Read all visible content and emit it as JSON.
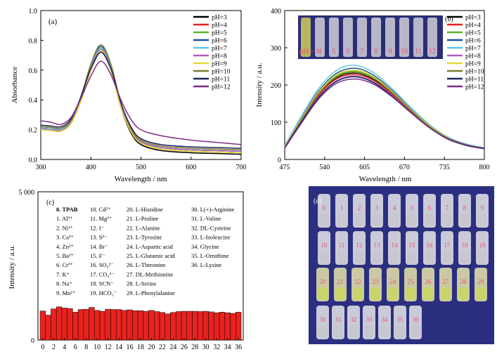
{
  "panel_a": {
    "tag": "(a)",
    "xlabel": "Wavelength / nm",
    "ylabel": "Absorbance",
    "xticks": [
      "300",
      "400",
      "500",
      "600",
      "700"
    ],
    "yticks": [
      "0.0",
      "0.2",
      "0.4",
      "0.6",
      "0.8",
      "1.0"
    ],
    "legend": [
      "pH=3",
      "pH=4",
      "pH=5",
      "pH=6",
      "pH=7",
      "pH=8",
      "pH=9",
      "pH=10",
      "pH=11",
      "pH=12"
    ]
  },
  "panel_b": {
    "tag": "(b)",
    "xlabel": "Wavelength / nm",
    "ylabel": "Intensity / a.u.",
    "xticks": [
      "475",
      "540",
      "605",
      "670",
      "735",
      "800"
    ],
    "yticks": [
      "0",
      "100",
      "200",
      "300",
      "400"
    ],
    "legend": [
      "pH=3",
      "pH=4",
      "pH=5",
      "pH=6",
      "pH=7",
      "pH=8",
      "pH=9",
      "pH=10",
      "pH=11",
      "pH=12"
    ],
    "inset_label": "pH= 3",
    "inset_numbers": [
      "4",
      "5",
      "6",
      "7",
      "8",
      "9",
      "10",
      "11",
      "12"
    ]
  },
  "panel_c": {
    "tag": "(c)",
    "ylabel": "Intensity / a.u.",
    "yticks": [
      "0",
      "5 000"
    ],
    "xticks": [
      "0",
      "2",
      "4",
      "6",
      "8",
      "10",
      "12",
      "14",
      "16",
      "18",
      "20",
      "22",
      "24",
      "26",
      "28",
      "30",
      "32",
      "34",
      "36"
    ],
    "legend_col1": [
      "0. TPAB",
      "1. Al³⁺",
      "2. Ni²⁺",
      "3. Ca²⁺",
      "4. Zn²⁺",
      "5. Ba²⁺",
      "6. Cr³⁺",
      "7. K⁺",
      "8. Na⁺",
      "9. Mn²⁺"
    ],
    "legend_col2": [
      "10. Cd²⁺",
      "11. Mg²⁺",
      "12. I⁻",
      "13. S²⁻",
      "14. Br⁻",
      "15. F⁻",
      "16. SO₄²⁻",
      "17. CO₃²⁻",
      "18. SCN⁻",
      "19. HCO₃⁻"
    ],
    "legend_col3": [
      "20. L-Histidine",
      "21. L-Proline",
      "22. L-Alanine",
      "23. L-Tyrosine",
      "24. L-Aspartic acid",
      "25. L-Glutamic acid",
      "26. L-Threonine",
      "27. DL-Methionine",
      "28. L-Serine",
      "29. L-Phenylalanine"
    ],
    "legend_col4": [
      "30. L(+)-Arginine",
      "31. L-Valine",
      "32. DL-Cysteine",
      "33. L-Isoleucine",
      "34. Glycine",
      "35. L-Ornithine",
      "36. L-Lysine"
    ]
  },
  "panel_d": {
    "tag": "(d)",
    "row1": [
      "0",
      "1",
      "2",
      "3",
      "4",
      "5",
      "6",
      "7",
      "8",
      "9"
    ],
    "row2": [
      "10",
      "11",
      "12",
      "13",
      "14",
      "15",
      "16",
      "17",
      "18",
      "19"
    ],
    "row3": [
      "20",
      "21",
      "22",
      "23",
      "24",
      "25",
      "26",
      "27",
      "28",
      "29"
    ],
    "row4": [
      "30",
      "31",
      "32",
      "33",
      "34",
      "35",
      "36"
    ]
  },
  "colors": {
    "pH=3": "#000000",
    "pH=4": "#e8231f",
    "pH=5": "#5ab52f",
    "pH=6": "#1f4e9b",
    "pH=7": "#5ec7e6",
    "pH=8": "#b05cc0",
    "pH=9": "#e8d93a",
    "pH=10": "#7a7d2a",
    "pH=11": "#1d2560",
    "pH=12": "#7d2b84",
    "bars": "#e8231f"
  },
  "chart_data": [
    {
      "type": "line",
      "xlabel": "Wavelength / nm",
      "ylabel": "Absorbance",
      "xlim": [
        300,
        700
      ],
      "ylim": [
        0,
        1.0
      ],
      "series": [
        {
          "name": "pH=3",
          "x": [
            300,
            320,
            340,
            360,
            380,
            400,
            420,
            440,
            460,
            480,
            500,
            540,
            600,
            650,
            700
          ],
          "y": [
            0.21,
            0.205,
            0.2,
            0.25,
            0.4,
            0.6,
            0.72,
            0.6,
            0.35,
            0.18,
            0.1,
            0.06,
            0.045,
            0.04,
            0.035
          ]
        },
        {
          "name": "pH=4",
          "x": [
            300,
            320,
            340,
            360,
            380,
            400,
            420,
            440,
            460,
            480,
            500,
            540,
            600,
            650,
            700
          ],
          "y": [
            0.2,
            0.195,
            0.19,
            0.24,
            0.39,
            0.6,
            0.73,
            0.61,
            0.36,
            0.19,
            0.11,
            0.07,
            0.055,
            0.05,
            0.045
          ]
        },
        {
          "name": "pH=5",
          "x": [
            300,
            320,
            340,
            360,
            380,
            400,
            420,
            440,
            460,
            480,
            500,
            540,
            600,
            650,
            700
          ],
          "y": [
            0.205,
            0.2,
            0.195,
            0.245,
            0.4,
            0.62,
            0.75,
            0.62,
            0.36,
            0.19,
            0.11,
            0.07,
            0.055,
            0.05,
            0.045
          ]
        },
        {
          "name": "pH=6",
          "x": [
            300,
            320,
            340,
            360,
            380,
            400,
            420,
            440,
            460,
            480,
            500,
            540,
            600,
            650,
            700
          ],
          "y": [
            0.22,
            0.215,
            0.21,
            0.26,
            0.42,
            0.63,
            0.76,
            0.63,
            0.37,
            0.2,
            0.12,
            0.08,
            0.065,
            0.06,
            0.055
          ]
        },
        {
          "name": "pH=7",
          "x": [
            300,
            320,
            340,
            360,
            380,
            400,
            420,
            440,
            460,
            480,
            500,
            540,
            600,
            650,
            700
          ],
          "y": [
            0.21,
            0.205,
            0.2,
            0.25,
            0.41,
            0.62,
            0.75,
            0.62,
            0.37,
            0.2,
            0.12,
            0.08,
            0.065,
            0.06,
            0.055
          ]
        },
        {
          "name": "pH=8",
          "x": [
            300,
            320,
            340,
            360,
            380,
            400,
            420,
            440,
            460,
            480,
            500,
            540,
            600,
            650,
            700
          ],
          "y": [
            0.205,
            0.2,
            0.195,
            0.245,
            0.4,
            0.61,
            0.74,
            0.61,
            0.36,
            0.2,
            0.12,
            0.08,
            0.065,
            0.06,
            0.055
          ]
        },
        {
          "name": "pH=9",
          "x": [
            300,
            320,
            340,
            360,
            380,
            400,
            420,
            440,
            460,
            480,
            500,
            540,
            600,
            650,
            700
          ],
          "y": [
            0.2,
            0.195,
            0.19,
            0.24,
            0.39,
            0.6,
            0.73,
            0.6,
            0.35,
            0.19,
            0.11,
            0.07,
            0.055,
            0.05,
            0.045
          ]
        },
        {
          "name": "pH=10",
          "x": [
            300,
            320,
            340,
            360,
            380,
            400,
            420,
            440,
            460,
            480,
            500,
            540,
            600,
            650,
            700
          ],
          "y": [
            0.22,
            0.215,
            0.21,
            0.26,
            0.42,
            0.64,
            0.77,
            0.64,
            0.38,
            0.21,
            0.13,
            0.09,
            0.075,
            0.07,
            0.065
          ]
        },
        {
          "name": "pH=11",
          "x": [
            300,
            320,
            340,
            360,
            380,
            400,
            420,
            440,
            460,
            480,
            500,
            540,
            600,
            650,
            700
          ],
          "y": [
            0.23,
            0.225,
            0.22,
            0.27,
            0.42,
            0.61,
            0.72,
            0.61,
            0.38,
            0.22,
            0.14,
            0.1,
            0.085,
            0.08,
            0.075
          ]
        },
        {
          "name": "pH=12",
          "x": [
            300,
            320,
            340,
            360,
            380,
            400,
            420,
            440,
            460,
            480,
            500,
            540,
            600,
            650,
            700
          ],
          "y": [
            0.26,
            0.25,
            0.235,
            0.28,
            0.41,
            0.56,
            0.66,
            0.57,
            0.4,
            0.27,
            0.2,
            0.16,
            0.13,
            0.115,
            0.1
          ]
        }
      ]
    },
    {
      "type": "line",
      "xlabel": "Wavelength / nm",
      "ylabel": "Intensity / a.u.",
      "xlim": [
        475,
        800
      ],
      "ylim": [
        0,
        400
      ],
      "series": [
        {
          "name": "pH=3",
          "x": [
            475,
            500,
            530,
            560,
            590,
            620,
            650,
            680,
            710,
            740,
            770,
            800
          ],
          "y": [
            33,
            100,
            175,
            220,
            232,
            215,
            178,
            132,
            90,
            58,
            40,
            30
          ]
        },
        {
          "name": "pH=4",
          "x": [
            475,
            500,
            530,
            560,
            590,
            620,
            650,
            680,
            710,
            740,
            770,
            800
          ],
          "y": [
            32,
            98,
            172,
            217,
            228,
            212,
            175,
            130,
            88,
            57,
            39,
            29
          ]
        },
        {
          "name": "pH=5",
          "x": [
            475,
            500,
            530,
            560,
            590,
            620,
            650,
            680,
            710,
            740,
            770,
            800
          ],
          "y": [
            34,
            102,
            178,
            225,
            237,
            220,
            181,
            134,
            91,
            58,
            40,
            30
          ]
        },
        {
          "name": "pH=6",
          "x": [
            475,
            500,
            530,
            560,
            590,
            620,
            650,
            680,
            710,
            740,
            770,
            800
          ],
          "y": [
            35,
            105,
            183,
            232,
            245,
            226,
            185,
            137,
            93,
            60,
            41,
            31
          ]
        },
        {
          "name": "pH=7",
          "x": [
            475,
            500,
            530,
            560,
            590,
            620,
            650,
            680,
            710,
            740,
            770,
            800
          ],
          "y": [
            37,
            110,
            190,
            240,
            253,
            233,
            190,
            140,
            95,
            61,
            42,
            31
          ]
        },
        {
          "name": "pH=8",
          "x": [
            475,
            500,
            530,
            560,
            590,
            620,
            650,
            680,
            710,
            740,
            770,
            800
          ],
          "y": [
            32,
            96,
            168,
            212,
            224,
            208,
            172,
            128,
            87,
            56,
            38,
            29
          ]
        },
        {
          "name": "pH=9",
          "x": [
            475,
            500,
            530,
            560,
            590,
            620,
            650,
            680,
            710,
            740,
            770,
            800
          ],
          "y": [
            34,
            103,
            180,
            228,
            240,
            222,
            182,
            135,
            92,
            59,
            40,
            30
          ]
        },
        {
          "name": "pH=10",
          "x": [
            475,
            500,
            530,
            560,
            590,
            620,
            650,
            680,
            710,
            740,
            770,
            800
          ],
          "y": [
            33,
            100,
            176,
            222,
            234,
            217,
            179,
            133,
            90,
            58,
            40,
            30
          ]
        },
        {
          "name": "pH=11",
          "x": [
            475,
            500,
            530,
            560,
            590,
            620,
            650,
            680,
            710,
            740,
            770,
            800
          ],
          "y": [
            31,
            95,
            166,
            210,
            222,
            206,
            170,
            127,
            86,
            55,
            38,
            29
          ]
        },
        {
          "name": "pH=12",
          "x": [
            475,
            500,
            530,
            560,
            590,
            620,
            650,
            680,
            710,
            740,
            770,
            800
          ],
          "y": [
            30,
            92,
            162,
            205,
            216,
            202,
            168,
            126,
            86,
            56,
            39,
            30
          ]
        }
      ]
    },
    {
      "type": "bar",
      "ylabel": "Intensity / a.u.",
      "ylim": [
        0,
        5000
      ],
      "categories": [
        "0",
        "1",
        "2",
        "3",
        "4",
        "5",
        "6",
        "7",
        "8",
        "9",
        "10",
        "11",
        "12",
        "13",
        "14",
        "15",
        "16",
        "17",
        "18",
        "19",
        "20",
        "21",
        "22",
        "23",
        "24",
        "25",
        "26",
        "27",
        "28",
        "29",
        "30",
        "31",
        "32",
        "33",
        "34",
        "35",
        "36"
      ],
      "values": [
        980,
        840,
        1050,
        1120,
        1080,
        1060,
        940,
        1030,
        1040,
        1100,
        1000,
        970,
        1040,
        1030,
        1030,
        1000,
        1020,
        990,
        990,
        970,
        1000,
        960,
        930,
        880,
        930,
        960,
        970,
        970,
        970,
        960,
        970,
        950,
        920,
        940,
        920,
        900,
        940
      ]
    }
  ]
}
